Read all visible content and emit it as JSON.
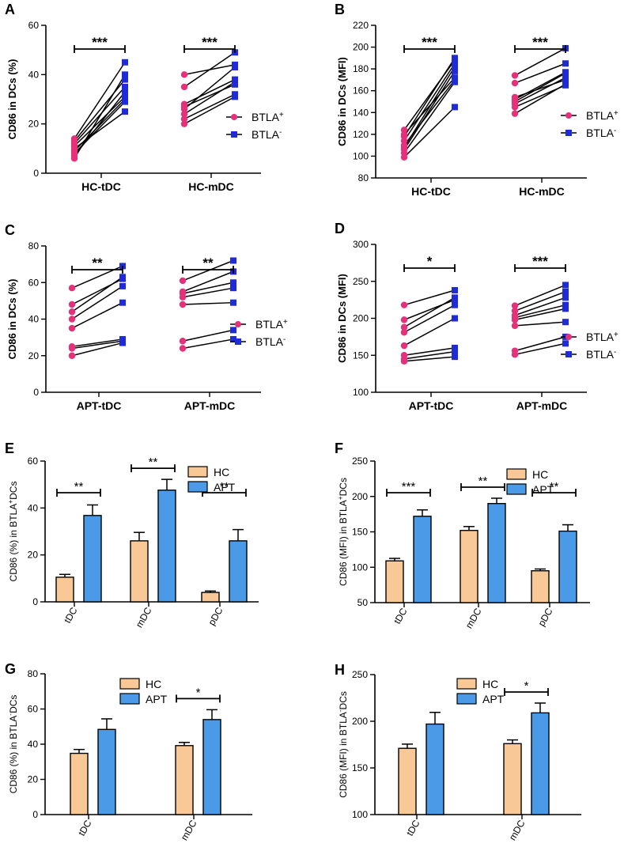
{
  "colors": {
    "btla_pos": "#e6307a",
    "btla_neg": "#1f2bd6",
    "hc": "#f8c896",
    "apt": "#4a9ae8"
  },
  "chart_data": [
    {
      "panel": "A",
      "type": "scatter",
      "ylabel": "CD86 in DCs (%)",
      "ylim": [
        0,
        60
      ],
      "yticks": [
        0,
        20,
        40,
        60
      ],
      "categories": [
        "HC-tDC",
        "HC-mDC"
      ],
      "legend": [
        {
          "name": "BTLA",
          "sup": "+"
        },
        {
          "name": "BTLA",
          "sup": "-"
        }
      ],
      "pairs": [
        [
          [
            7,
            33
          ],
          [
            9,
            30
          ],
          [
            10,
            25
          ],
          [
            12,
            35
          ],
          [
            14,
            45
          ],
          [
            6,
            40
          ],
          [
            8,
            29
          ],
          [
            11,
            31
          ],
          [
            13,
            38
          ]
        ],
        [
          [
            20,
            31
          ],
          [
            22,
            32
          ],
          [
            24,
            37
          ],
          [
            27,
            36
          ],
          [
            35,
            49
          ],
          [
            40,
            44
          ],
          [
            28,
            38
          ],
          [
            26,
            43
          ]
        ]
      ],
      "significance": [
        "***",
        "***"
      ]
    },
    {
      "panel": "B",
      "type": "scatter",
      "ylabel": "CD86 in DCs (MFI)",
      "ylim": [
        80,
        220
      ],
      "yticks": [
        80,
        100,
        120,
        140,
        160,
        180,
        200,
        220
      ],
      "categories": [
        "HC-tDC",
        "HC-mDC"
      ],
      "legend": [
        {
          "name": "BTLA",
          "sup": "+"
        },
        {
          "name": "BTLA",
          "sup": "-"
        }
      ],
      "pairs": [
        [
          [
            99,
            145
          ],
          [
            103,
            168
          ],
          [
            106,
            178
          ],
          [
            110,
            170
          ],
          [
            114,
            185
          ],
          [
            118,
            190
          ],
          [
            120,
            172
          ],
          [
            124,
            188
          ],
          [
            108,
            182
          ]
        ],
        [
          [
            139,
            166
          ],
          [
            145,
            165
          ],
          [
            148,
            172
          ],
          [
            150,
            176
          ],
          [
            154,
            170
          ],
          [
            167,
            185
          ],
          [
            174,
            199
          ],
          [
            152,
            177
          ]
        ]
      ],
      "significance": [
        "***",
        "***"
      ]
    },
    {
      "panel": "C",
      "type": "scatter",
      "ylabel": "CD86 in DCs (%)",
      "ylim": [
        0,
        80
      ],
      "yticks": [
        0,
        20,
        40,
        60,
        80
      ],
      "categories": [
        "APT-tDC",
        "APT-mDC"
      ],
      "legend": [
        {
          "name": "BTLA",
          "sup": "+"
        },
        {
          "name": "BTLA",
          "sup": "-"
        }
      ],
      "pairs": [
        [
          [
            20,
            27
          ],
          [
            24,
            28
          ],
          [
            25,
            29
          ],
          [
            35,
            49
          ],
          [
            40,
            58
          ],
          [
            44,
            63
          ],
          [
            48,
            62
          ],
          [
            57,
            69
          ]
        ],
        [
          [
            24,
            29
          ],
          [
            28,
            34
          ],
          [
            48,
            49
          ],
          [
            52,
            57
          ],
          [
            54,
            60
          ],
          [
            55,
            66
          ],
          [
            61,
            72
          ]
        ]
      ],
      "significance": [
        "**",
        "**"
      ]
    },
    {
      "panel": "D",
      "type": "scatter",
      "ylabel": "CD86 in DCs (MFI)",
      "ylim": [
        100,
        300
      ],
      "yticks": [
        100,
        150,
        200,
        250,
        300
      ],
      "categories": [
        "APT-tDC",
        "APT-mDC"
      ],
      "legend": [
        {
          "name": "BTLA",
          "sup": "+"
        },
        {
          "name": "BTLA",
          "sup": "-"
        }
      ],
      "pairs": [
        [
          [
            142,
            148
          ],
          [
            145,
            155
          ],
          [
            150,
            160
          ],
          [
            163,
            200
          ],
          [
            181,
            218
          ],
          [
            188,
            228
          ],
          [
            198,
            225
          ],
          [
            218,
            238
          ]
        ],
        [
          [
            151,
            166
          ],
          [
            156,
            175
          ],
          [
            190,
            195
          ],
          [
            198,
            213
          ],
          [
            201,
            218
          ],
          [
            204,
            228
          ],
          [
            210,
            236
          ],
          [
            217,
            245
          ]
        ]
      ],
      "significance": [
        "*",
        "***"
      ]
    },
    {
      "panel": "E",
      "type": "bar",
      "ylabel": "CD86 (%) in BTLA",
      "ylabel_sup": "+",
      "ylabel_tail": "DCs",
      "ylim": [
        0,
        60
      ],
      "yticks": [
        0,
        20,
        40,
        60
      ],
      "categories": [
        "tDC",
        "mDC",
        "pDC"
      ],
      "series": [
        {
          "name": "HC",
          "values": [
            10.5,
            26,
            4
          ],
          "errors": [
            1.2,
            3.6,
            0.6
          ]
        },
        {
          "name": "APT",
          "values": [
            36.8,
            47.6,
            26
          ],
          "errors": [
            4.5,
            4.6,
            4.8
          ]
        }
      ],
      "significance": [
        "**",
        "**",
        "**"
      ]
    },
    {
      "panel": "F",
      "type": "bar",
      "ylabel": "CD86 (MFI) in BTLA",
      "ylabel_sup": "+",
      "ylabel_tail": "DCs",
      "ylim": [
        50,
        250
      ],
      "yticks": [
        50,
        100,
        150,
        200,
        250
      ],
      "categories": [
        "tDC",
        "mDC",
        "pDC"
      ],
      "series": [
        {
          "name": "HC",
          "values": [
            109,
            152,
            95
          ],
          "errors": [
            3.5,
            5.5,
            2.5
          ]
        },
        {
          "name": "APT",
          "values": [
            172,
            190,
            151
          ],
          "errors": [
            9,
            7.5,
            9
          ]
        }
      ],
      "significance": [
        "***",
        "**",
        "**"
      ]
    },
    {
      "panel": "G",
      "type": "bar",
      "ylabel": "CD86 (%) in BTLA",
      "ylabel_sup": "-",
      "ylabel_tail": "DCs",
      "ylim": [
        0,
        80
      ],
      "yticks": [
        0,
        20,
        40,
        60,
        80
      ],
      "categories": [
        "tDC",
        "mDC"
      ],
      "series": [
        {
          "name": "HC",
          "values": [
            34.8,
            39.2
          ],
          "errors": [
            2.2,
            1.8
          ]
        },
        {
          "name": "APT",
          "values": [
            48.4,
            54
          ],
          "errors": [
            6,
            5.6
          ]
        }
      ],
      "significance": [
        "",
        "*"
      ]
    },
    {
      "panel": "H",
      "type": "bar",
      "ylabel": "CD86 (MFI) in BTLA",
      "ylabel_sup": "-",
      "ylabel_tail": "DCs",
      "ylim": [
        100,
        250
      ],
      "yticks": [
        100,
        150,
        200,
        250
      ],
      "categories": [
        "tDC",
        "mDC"
      ],
      "series": [
        {
          "name": "HC",
          "values": [
            171,
            176
          ],
          "errors": [
            4.5,
            4
          ]
        },
        {
          "name": "APT",
          "values": [
            197,
            209
          ],
          "errors": [
            12.5,
            10.5
          ]
        }
      ],
      "significance": [
        "",
        "*"
      ]
    }
  ]
}
